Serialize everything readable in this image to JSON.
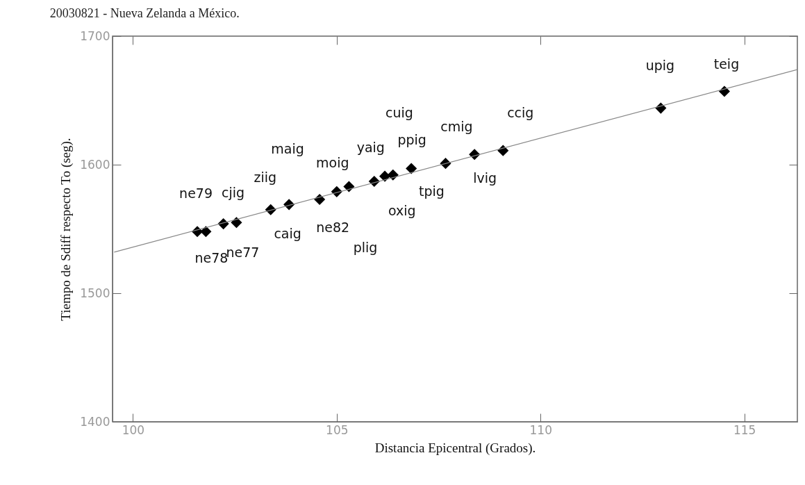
{
  "chart_data": {
    "type": "scatter",
    "title": "20030821  -  Nueva Zelanda a México.",
    "xlabel": "Distancia Epicentral (Grados).",
    "ylabel": "Tiempo de Sdiff respecto To (seg).",
    "x": [
      101.58,
      101.79,
      102.22,
      102.54,
      103.38,
      103.83,
      104.58,
      105.0,
      105.3,
      105.92,
      106.18,
      106.38,
      106.83,
      107.67,
      108.38,
      109.08,
      112.95,
      114.51
    ],
    "series": [
      {
        "color": "#000000",
        "marker": "diamond",
        "values": [
          1548,
          1548,
          1554,
          1555,
          1565,
          1569,
          1573,
          1579,
          1583,
          1587,
          1591,
          1592,
          1597,
          1601,
          1608,
          1611,
          1644,
          1657
        ]
      },
      {
        "type": "line",
        "color": "#888888",
        "marker": "none",
        "x": [
          99.54,
          116.3
        ],
        "values": [
          1532,
          1674
        ]
      }
    ],
    "annotations": [
      {
        "text": "ne79",
        "x": 101.58,
        "y": 1548
      },
      {
        "text": "ne78",
        "x": 101.79,
        "y": 1548
      },
      {
        "text": "cjig",
        "x": 102.22,
        "y": 1554
      },
      {
        "text": "ne77",
        "x": 102.54,
        "y": 1555
      },
      {
        "text": "ziig",
        "x": 103.38,
        "y": 1565
      },
      {
        "text": "caig",
        "x": 103.83,
        "y": 1569
      },
      "maig",
      {
        "text": "moig",
        "x": 105.0,
        "y": 1579
      },
      {
        "text": "ne82",
        "x": 104.58,
        "y": 1573
      },
      {
        "text": "yaig",
        "x": 105.92,
        "y": 1587
      },
      "plig",
      "cuig",
      {
        "text": "ppig",
        "x": 106.83,
        "y": 1597
      },
      {
        "text": "tpig",
        "x": 107.67,
        "y": 1601
      },
      {
        "text": "oxig",
        "x": 106.38,
        "y": 1592
      },
      {
        "text": "cmig",
        "x": 107.67,
        "y": 1601
      },
      {
        "text": "lvig",
        "x": 108.38,
        "y": 1608
      },
      {
        "text": "ccig",
        "x": 109.08,
        "y": 1611
      },
      {
        "text": "upig",
        "x": 112.95,
        "y": 1644
      },
      {
        "text": "teig",
        "x": 114.51,
        "y": 1657
      }
    ],
    "xlim": [
      99.5,
      116.3
    ],
    "ylim": [
      1400,
      1700
    ],
    "xticks": [
      100,
      105,
      110,
      115
    ],
    "yticks": [
      1400,
      1500,
      1600,
      1700
    ],
    "grid": false
  }
}
